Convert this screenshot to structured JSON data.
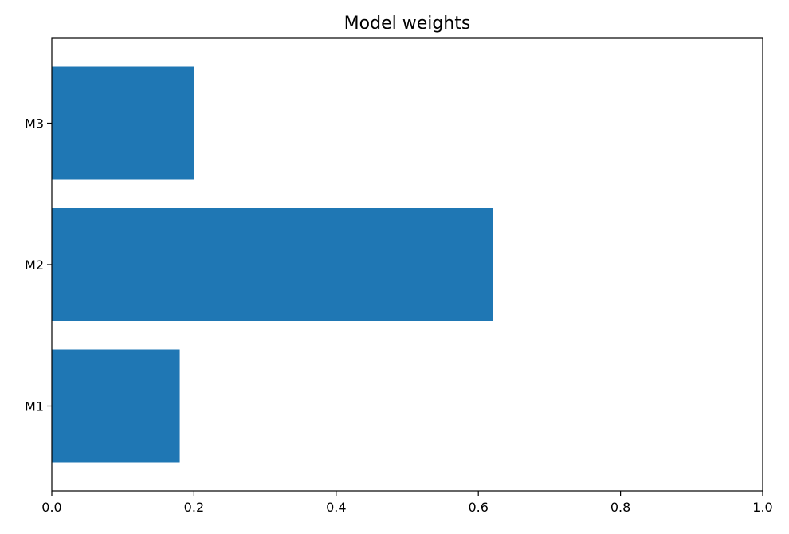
{
  "chart_data": {
    "type": "bar",
    "orientation": "horizontal",
    "title": "Model weights",
    "xlabel": "",
    "ylabel": "",
    "categories": [
      "M1",
      "M2",
      "M3"
    ],
    "values": [
      0.18,
      0.62,
      0.2
    ],
    "xlim": [
      0.0,
      1.0
    ],
    "xticks": [
      "0.0",
      "0.2",
      "0.4",
      "0.6",
      "0.8",
      "1.0"
    ],
    "bar_color": "#1f77b4",
    "grid": false,
    "legend": "none"
  }
}
